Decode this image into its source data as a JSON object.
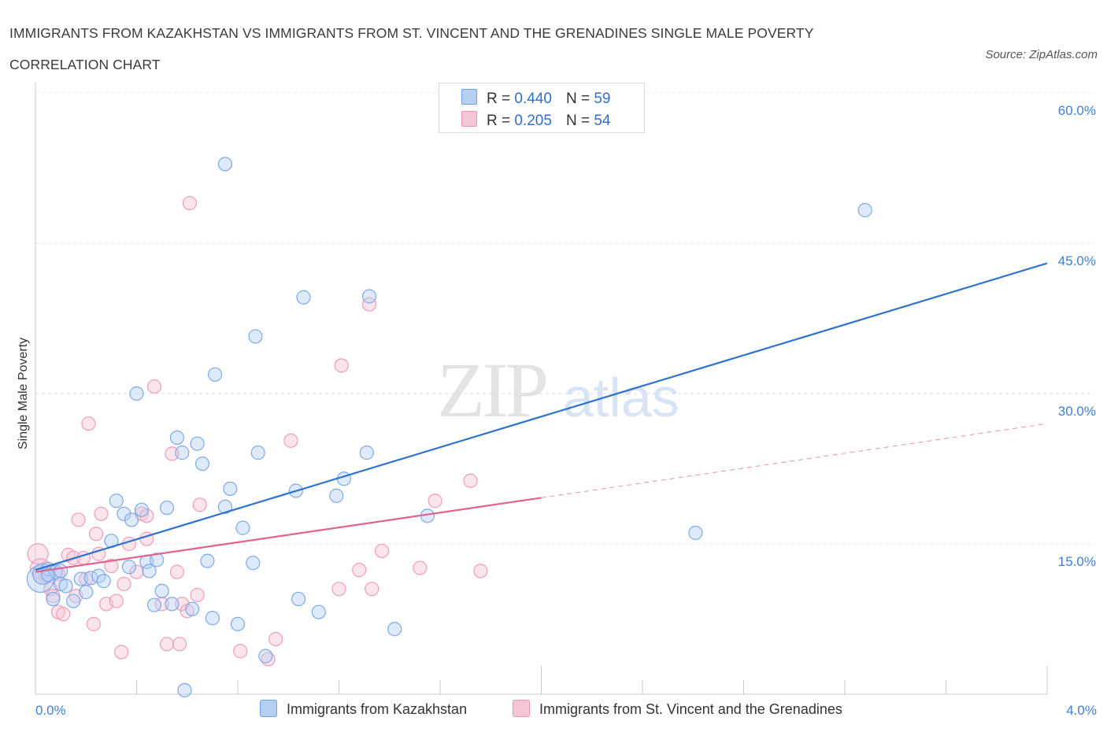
{
  "header": {
    "title": "IMMIGRANTS FROM KAZAKHSTAN VS IMMIGRANTS FROM ST. VINCENT AND THE GRENADINES SINGLE MALE POVERTY CORRELATION CHART",
    "source": "Source: ZipAtlas.com"
  },
  "watermark": {
    "zip": "ZIP",
    "atlas": "atlas"
  },
  "legend": {
    "rows": [
      {
        "r_label": "R =",
        "r_value": "0.440",
        "n_label": "N =",
        "n_value": "59"
      },
      {
        "r_label": "R =",
        "r_value": "0.205",
        "n_label": "N =",
        "n_value": "54"
      }
    ]
  },
  "bottom_legend": {
    "series1": "Immigrants from Kazakhstan",
    "series2": "Immigrants from St. Vincent and the Grenadines"
  },
  "chart_data": {
    "type": "scatter",
    "title": "IMMIGRANTS FROM KAZAKHSTAN VS IMMIGRANTS FROM ST. VINCENT AND THE GRENADINES SINGLE MALE POVERTY CORRELATION CHART",
    "xlabel": "",
    "ylabel": "Single Male Poverty",
    "xlim": [
      0,
      4
    ],
    "ylim": [
      0,
      60
    ],
    "x_tick_labels": [
      "0.0%",
      "4.0%"
    ],
    "y_ticks": [
      15,
      30,
      45,
      60
    ],
    "y_tick_labels": [
      "15.0%",
      "30.0%",
      "45.0%",
      "60.0%"
    ],
    "grid": true,
    "legend_position": "top-center",
    "colors": {
      "series1": "#6fa3e8",
      "series1_fill": "#b5cff3",
      "series1_line": "#2f72cf",
      "series2": "#ef93b0",
      "series2_fill": "#f7c6d5",
      "series2_line": "#e2638f",
      "tick": "#3f7fd4"
    },
    "series": [
      {
        "name": "Immigrants from Kazakhstan",
        "R": 0.44,
        "N": 59,
        "trend": {
          "x0": 0.0,
          "y0": 12.4,
          "x1": 4.0,
          "y1": 43.0
        },
        "points": [
          [
            0.02,
            11.5,
            3
          ],
          [
            0.03,
            12.0,
            2
          ],
          [
            0.05,
            12.5,
            1
          ],
          [
            0.07,
            9.5,
            1
          ],
          [
            0.08,
            12.2,
            1
          ],
          [
            0.1,
            11.0,
            1
          ],
          [
            0.12,
            10.8,
            1
          ],
          [
            0.15,
            9.3,
            1
          ],
          [
            0.18,
            11.5,
            1
          ],
          [
            0.2,
            10.2,
            1
          ],
          [
            0.22,
            11.6,
            1
          ],
          [
            0.25,
            11.8,
            1
          ],
          [
            0.27,
            11.3,
            1
          ],
          [
            0.3,
            15.3,
            1
          ],
          [
            0.32,
            19.3,
            1
          ],
          [
            0.35,
            18.0,
            1
          ],
          [
            0.37,
            12.7,
            1
          ],
          [
            0.38,
            17.4,
            1
          ],
          [
            0.4,
            30.0,
            1
          ],
          [
            0.42,
            18.4,
            1
          ],
          [
            0.44,
            13.2,
            1
          ],
          [
            0.45,
            12.3,
            1
          ],
          [
            0.47,
            8.9,
            1
          ],
          [
            0.48,
            13.4,
            1
          ],
          [
            0.5,
            10.3,
            1
          ],
          [
            0.52,
            18.6,
            1
          ],
          [
            0.54,
            9.0,
            1
          ],
          [
            0.56,
            25.6,
            1
          ],
          [
            0.58,
            24.1,
            1
          ],
          [
            0.59,
            0.4,
            1
          ],
          [
            0.62,
            8.5,
            1
          ],
          [
            0.64,
            25.0,
            1
          ],
          [
            0.66,
            23.0,
            1
          ],
          [
            0.68,
            13.3,
            1
          ],
          [
            0.7,
            7.6,
            1
          ],
          [
            0.71,
            31.9,
            1
          ],
          [
            0.75,
            18.7,
            1
          ],
          [
            0.75,
            52.9,
            1
          ],
          [
            0.77,
            20.5,
            1
          ],
          [
            0.8,
            7.0,
            1
          ],
          [
            0.82,
            16.6,
            1
          ],
          [
            0.86,
            13.1,
            1
          ],
          [
            0.87,
            35.7,
            1
          ],
          [
            0.88,
            24.1,
            1
          ],
          [
            0.91,
            3.8,
            1
          ],
          [
            1.03,
            20.3,
            1
          ],
          [
            1.04,
            9.5,
            1
          ],
          [
            1.06,
            39.6,
            1
          ],
          [
            1.12,
            8.2,
            1
          ],
          [
            1.19,
            19.8,
            1
          ],
          [
            1.22,
            21.5,
            1
          ],
          [
            1.31,
            24.1,
            1
          ],
          [
            1.32,
            39.7,
            1
          ],
          [
            1.42,
            6.5,
            1
          ],
          [
            1.55,
            17.8,
            1
          ],
          [
            2.61,
            16.1,
            1
          ],
          [
            3.28,
            48.3,
            1
          ],
          [
            0.05,
            11.9,
            1
          ],
          [
            0.1,
            12.3,
            1
          ]
        ]
      },
      {
        "name": "Immigrants from St. Vincent and the Grenadines",
        "R": 0.205,
        "N": 54,
        "trend": {
          "x0": 0.0,
          "y0": 12.2,
          "x1": 2.0,
          "y1": 19.6
        },
        "trend_ext": {
          "x0": 2.0,
          "y0": 19.6,
          "x1": 4.0,
          "y1": 27.0
        },
        "points": [
          [
            0.01,
            14.0,
            2
          ],
          [
            0.02,
            12.5,
            2
          ],
          [
            0.04,
            11.8,
            1
          ],
          [
            0.06,
            10.5,
            1
          ],
          [
            0.07,
            9.8,
            1
          ],
          [
            0.09,
            8.2,
            1
          ],
          [
            0.11,
            8.0,
            1
          ],
          [
            0.13,
            13.9,
            1
          ],
          [
            0.15,
            13.6,
            1
          ],
          [
            0.17,
            17.4,
            1
          ],
          [
            0.19,
            13.6,
            1
          ],
          [
            0.2,
            11.5,
            1
          ],
          [
            0.21,
            27.0,
            1
          ],
          [
            0.23,
            7.0,
            1
          ],
          [
            0.24,
            16.0,
            1
          ],
          [
            0.26,
            18.0,
            1
          ],
          [
            0.28,
            9.0,
            1
          ],
          [
            0.3,
            12.8,
            1
          ],
          [
            0.32,
            9.3,
            1
          ],
          [
            0.34,
            4.2,
            1
          ],
          [
            0.35,
            11.0,
            1
          ],
          [
            0.37,
            15.0,
            1
          ],
          [
            0.4,
            12.2,
            1
          ],
          [
            0.42,
            18.0,
            1
          ],
          [
            0.44,
            15.5,
            1
          ],
          [
            0.44,
            17.8,
            1
          ],
          [
            0.47,
            30.7,
            1
          ],
          [
            0.5,
            9.0,
            1
          ],
          [
            0.52,
            5.0,
            1
          ],
          [
            0.54,
            24.0,
            1
          ],
          [
            0.56,
            12.2,
            1
          ],
          [
            0.57,
            5.0,
            1
          ],
          [
            0.58,
            9.0,
            1
          ],
          [
            0.6,
            8.3,
            1
          ],
          [
            0.61,
            49.0,
            1
          ],
          [
            0.64,
            9.9,
            1
          ],
          [
            0.65,
            18.9,
            1
          ],
          [
            0.81,
            4.3,
            1
          ],
          [
            0.92,
            3.5,
            1
          ],
          [
            0.95,
            5.5,
            1
          ],
          [
            1.01,
            25.3,
            1
          ],
          [
            1.2,
            10.5,
            1
          ],
          [
            1.21,
            32.8,
            1
          ],
          [
            1.28,
            12.4,
            1
          ],
          [
            1.32,
            38.9,
            1
          ],
          [
            1.33,
            10.5,
            1
          ],
          [
            1.37,
            14.3,
            1
          ],
          [
            1.52,
            12.6,
            1
          ],
          [
            1.58,
            19.3,
            1
          ],
          [
            1.72,
            21.3,
            1
          ],
          [
            1.76,
            12.3,
            1
          ],
          [
            0.09,
            12.0,
            1
          ],
          [
            0.16,
            9.8,
            1
          ],
          [
            0.25,
            14.0,
            1
          ]
        ]
      }
    ]
  }
}
